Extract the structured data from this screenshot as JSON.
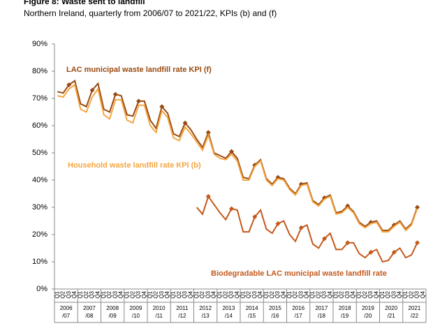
{
  "chart_data": {
    "type": "line",
    "title": "Figure 8: Waste sent to landfill",
    "subtitle": "Northern Ireland, quarterly from 2006/07 to 2021/22, KPIs (b) and (f)",
    "categories": [
      "Q1",
      "Q2",
      "Q3",
      "Q4",
      "Q1",
      "Q2",
      "Q3",
      "Q4",
      "Q1",
      "Q2",
      "Q3",
      "Q4",
      "Q1",
      "Q2",
      "Q3",
      "Q4",
      "Q1",
      "Q2",
      "Q3",
      "Q4",
      "Q1",
      "Q2",
      "Q3",
      "Q4",
      "Q1",
      "Q2",
      "Q3",
      "Q4",
      "Q1",
      "Q2",
      "Q3",
      "Q4",
      "Q1",
      "Q2",
      "Q3",
      "Q4",
      "Q1",
      "Q2",
      "Q3",
      "Q4",
      "Q1",
      "Q2",
      "Q3",
      "Q4",
      "Q1",
      "Q2",
      "Q3",
      "Q4",
      "Q1",
      "Q2",
      "Q3",
      "Q4",
      "Q1",
      "Q2",
      "Q3",
      "Q4",
      "Q1",
      "Q2",
      "Q3",
      "Q4",
      "Q1",
      "Q2",
      "Q3",
      "Q4"
    ],
    "year_groups": [
      [
        "2006",
        "/07"
      ],
      [
        "2007",
        "/08"
      ],
      [
        "2008",
        "/09"
      ],
      [
        "2009",
        "/10"
      ],
      [
        "2010",
        "/11"
      ],
      [
        "2011",
        "/12"
      ],
      [
        "2012",
        "/13"
      ],
      [
        "2013",
        "/14"
      ],
      [
        "2014",
        "/15"
      ],
      [
        "2015",
        "/16"
      ],
      [
        "2016",
        "/17"
      ],
      [
        "2017",
        "/18"
      ],
      [
        "2018",
        "/19"
      ],
      [
        "2019",
        "/20"
      ],
      [
        "2020",
        "/21"
      ],
      [
        "2021",
        "/22"
      ]
    ],
    "ylim": [
      0,
      90
    ],
    "yticks": [
      {
        "value": 0,
        "label": "0%"
      },
      {
        "value": 10,
        "label": "10%"
      },
      {
        "value": 20,
        "label": "20%"
      },
      {
        "value": 30,
        "label": "30%"
      },
      {
        "value": 40,
        "label": "40%"
      },
      {
        "value": 50,
        "label": "50%"
      },
      {
        "value": 60,
        "label": "60%"
      },
      {
        "value": 70,
        "label": "70%"
      },
      {
        "value": 80,
        "label": "80%"
      },
      {
        "value": 90,
        "label": "90%"
      }
    ],
    "series": [
      {
        "name": "LAC municipal waste landfill rate KPI (f)",
        "color": "#9a4a10",
        "values": [
          72.5,
          72,
          75,
          76.5,
          68,
          67,
          73,
          75.5,
          66,
          65,
          71.5,
          71,
          64,
          63.5,
          69,
          69,
          62,
          59,
          67,
          64.5,
          57,
          56,
          61,
          58.5,
          55,
          52,
          57.5,
          50,
          49,
          48,
          50.5,
          48,
          41,
          40.5,
          45.5,
          47.5,
          40.5,
          38.5,
          41,
          40.5,
          37,
          35,
          38.5,
          39,
          32.5,
          31,
          33.5,
          34.5,
          28,
          28.5,
          30.5,
          28.5,
          24.5,
          23,
          24.5,
          25,
          21.5,
          21.5,
          23.5,
          25,
          22,
          24,
          30,
          null
        ]
      },
      {
        "name": "Household waste landfill rate KPI (b)",
        "color": "#f5a540",
        "values": [
          71,
          70.5,
          73.5,
          75,
          66,
          65,
          70.5,
          73.5,
          64,
          62.5,
          69.5,
          69.5,
          62,
          61,
          67.5,
          67.5,
          60,
          57.5,
          65.5,
          63,
          55.5,
          54.5,
          59.5,
          57,
          54,
          51,
          56.5,
          49.5,
          48,
          47.5,
          49.5,
          47,
          40,
          40,
          45,
          47,
          40,
          38,
          40.5,
          40,
          36.5,
          34.5,
          38,
          38.5,
          32,
          30.5,
          33,
          34,
          27.5,
          28,
          30,
          28,
          24,
          22.5,
          24,
          24.5,
          21,
          21,
          23,
          24.5,
          21.5,
          23.5,
          29.5,
          null
        ]
      },
      {
        "name": "Biodegradable LAC municipal waste landfill rate",
        "color": "#c4581a",
        "values": [
          null,
          null,
          null,
          null,
          null,
          null,
          null,
          null,
          null,
          null,
          null,
          null,
          null,
          null,
          null,
          null,
          null,
          null,
          null,
          null,
          null,
          null,
          null,
          null,
          30,
          27.5,
          34,
          31,
          28,
          25.5,
          29.5,
          29,
          21,
          21,
          26.5,
          29,
          22,
          20.5,
          24,
          25,
          20,
          17.5,
          22.5,
          23.5,
          16.5,
          15,
          18.5,
          20.5,
          14.5,
          14.5,
          17,
          17,
          13,
          11.5,
          13.5,
          14.5,
          10,
          10.5,
          13.5,
          15,
          11.5,
          12.5,
          17,
          null
        ]
      }
    ]
  }
}
